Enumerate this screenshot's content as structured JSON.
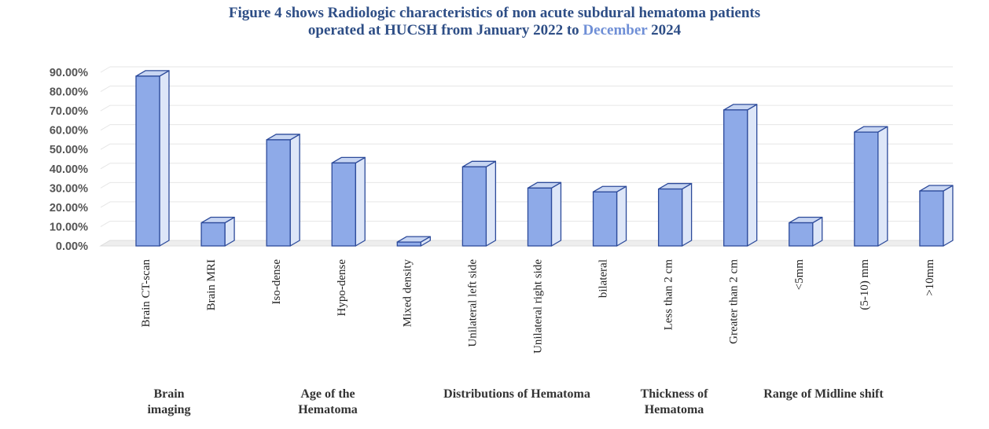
{
  "title": {
    "part1": "Figure 4 shows Radiologic characteristics of non acute subdural hematoma patients",
    "part2": "operated at HUCSH from January 2022 to ",
    "part3": "December",
    "part4": " 2024"
  },
  "colors": {
    "bar_front": "#8eaae8",
    "bar_side": "#dde6f8",
    "bar_top": "#c7d5f2",
    "bar_edge": "#2c4a9a",
    "gridline": "#e6e6e6",
    "title_text": "#2e4e86",
    "title_highlight": "#6f8fd6"
  },
  "chart_data": {
    "type": "bar",
    "style": "3d-column",
    "categories": [
      "Brain CT-scan",
      "Brain MRI",
      "Iso-dense",
      "Hypo-dense",
      "Mixed density",
      "Unilateral left side",
      "Unilateral right side",
      "bilateral",
      "Less than 2 cm",
      "Greater than 2 cm",
      "<5mm",
      "(5-10) mm",
      ">10mm"
    ],
    "values": [
      88.0,
      12.0,
      55.0,
      43.0,
      2.0,
      41.0,
      30.0,
      28.0,
      29.5,
      70.5,
      12.0,
      59.0,
      28.5
    ],
    "yticks": [
      "0.00%",
      "10.00%",
      "20.00%",
      "30.00%",
      "40.00%",
      "50.00%",
      "60.00%",
      "70.00%",
      "80.00%",
      "90.00%"
    ],
    "ylim": [
      0,
      90
    ],
    "grid": true,
    "groups": [
      {
        "label": "Brain imaging",
        "categories": [
          "Brain CT-scan",
          "Brain MRI"
        ]
      },
      {
        "label": "Age of the Hematoma",
        "categories": [
          "Iso-dense",
          "Hypo-dense",
          "Mixed density"
        ]
      },
      {
        "label": "Distributions of Hematoma",
        "categories": [
          "Unilateral left side",
          "Unilateral right side",
          "bilateral"
        ]
      },
      {
        "label": "Thickness of Hematoma",
        "categories": [
          "Less than 2 cm",
          "Greater than 2 cm"
        ]
      },
      {
        "label": "Range of Midline shift",
        "categories": [
          "<5mm",
          "(5-10) mm",
          ">10mm"
        ]
      }
    ]
  }
}
